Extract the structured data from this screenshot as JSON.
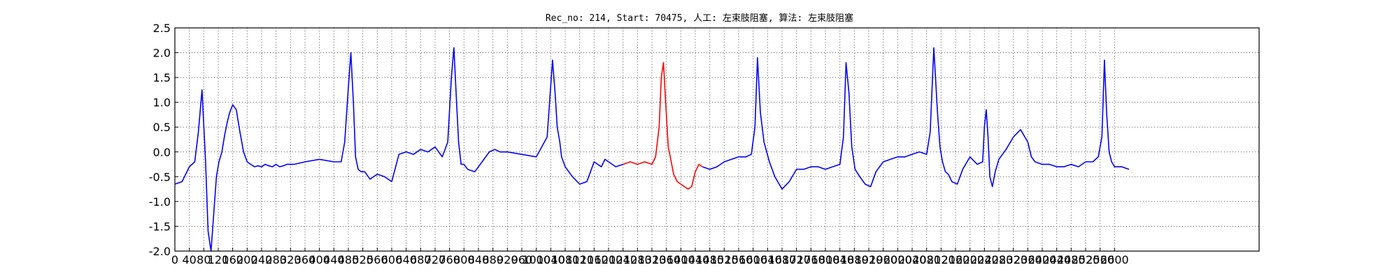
{
  "chart_data": {
    "type": "line",
    "title": "Rec_no: 214, Start: 70475, 人工: 左束肢阻塞, 算法: 左束肢阻塞",
    "xlabel": "",
    "ylabel": "",
    "xlim": [
      0,
      3000
    ],
    "ylim": [
      -2.0,
      2.5
    ],
    "grid": true,
    "x_ticks": [
      0,
      40,
      80,
      120,
      160,
      200,
      240,
      280,
      320,
      360,
      400,
      440,
      480,
      520,
      560,
      600,
      640,
      680,
      720,
      760,
      800,
      840,
      880,
      920,
      960,
      1000,
      1040,
      1080,
      1120,
      1160,
      1200,
      1240,
      1280,
      1320,
      1360,
      1400,
      1440,
      1480,
      1520,
      1560,
      1600,
      1640,
      1680,
      1720,
      1760,
      1800,
      1840,
      1880,
      1920,
      1960,
      2000,
      2040,
      2080,
      2120,
      2160,
      2200,
      2240,
      2280,
      2320,
      2360,
      2400,
      2440,
      2480,
      2520,
      2560,
      2600
    ],
    "y_ticks": [
      "2.5",
      "2.0",
      "1.5",
      "1.0",
      "0.5",
      "0.0",
      "-0.5",
      "-1.0",
      "-1.5",
      "-2.0"
    ],
    "series": [
      {
        "color": "#0000ff",
        "x": [
          0,
          20,
          40,
          55,
          65,
          75,
          85,
          92,
          100,
          108,
          115,
          122,
          130,
          138,
          145,
          152,
          160,
          170,
          180,
          190,
          200,
          210,
          220,
          230,
          240,
          250,
          260,
          270,
          280,
          290,
          300,
          310,
          330,
          360,
          400,
          440,
          460,
          470,
          480,
          487,
          494,
          500,
          507,
          515,
          525,
          540,
          560,
          580,
          600,
          620,
          640,
          660,
          680,
          700,
          720,
          740,
          755,
          765,
          772,
          778,
          785,
          792,
          800,
          810,
          830,
          850,
          870,
          885,
          900,
          920,
          960,
          1000,
          1030,
          1045,
          1052,
          1058,
          1065,
          1070,
          1080,
          1100,
          1120,
          1140,
          1150,
          1160,
          1170,
          1180,
          1190,
          1200,
          1220,
          1240
        ],
        "y": [
          -0.65,
          -0.6,
          -0.3,
          -0.2,
          0.4,
          1.25,
          -0.2,
          -1.6,
          -2.0,
          -1.2,
          -0.5,
          -0.2,
          0.0,
          0.35,
          0.6,
          0.8,
          0.95,
          0.85,
          0.4,
          0.0,
          -0.2,
          -0.25,
          -0.3,
          -0.28,
          -0.3,
          -0.25,
          -0.28,
          -0.3,
          -0.25,
          -0.3,
          -0.28,
          -0.25,
          -0.25,
          -0.2,
          -0.15,
          -0.2,
          -0.2,
          0.2,
          1.3,
          2.0,
          1.0,
          -0.1,
          -0.35,
          -0.4,
          -0.4,
          -0.55,
          -0.45,
          -0.5,
          -0.6,
          -0.05,
          0.0,
          -0.05,
          0.05,
          0.0,
          0.1,
          -0.1,
          0.2,
          1.5,
          2.1,
          1.2,
          0.2,
          -0.25,
          -0.25,
          -0.35,
          -0.4,
          -0.2,
          0.0,
          0.05,
          0.0,
          0.0,
          -0.05,
          -0.1,
          0.3,
          1.85,
          1.2,
          0.5,
          0.2,
          -0.1,
          -0.3,
          -0.5,
          -0.65,
          -0.6,
          -0.4,
          -0.2,
          -0.25,
          -0.3,
          -0.15,
          -0.2,
          -0.3,
          -0.25
        ]
      },
      {
        "color": "#ff0000",
        "x": [
          1240,
          1260,
          1280,
          1300,
          1320,
          1330,
          1340,
          1346,
          1352,
          1358,
          1365,
          1372,
          1380,
          1390,
          1400,
          1410,
          1420,
          1430,
          1440,
          1450,
          1460
        ],
        "y": [
          -0.25,
          -0.2,
          -0.25,
          -0.2,
          -0.25,
          -0.1,
          0.5,
          1.5,
          1.8,
          1.0,
          0.1,
          -0.15,
          -0.45,
          -0.6,
          -0.65,
          -0.7,
          -0.75,
          -0.7,
          -0.4,
          -0.25,
          -0.3
        ]
      },
      {
        "color": "#0000ff",
        "x": [
          1460,
          1480,
          1500,
          1520,
          1540,
          1560,
          1580,
          1595,
          1605,
          1612,
          1620,
          1630,
          1645,
          1660,
          1680,
          1700,
          1720,
          1740,
          1760,
          1780,
          1800,
          1820,
          1840,
          1850,
          1857,
          1865,
          1873,
          1882,
          1895,
          1910,
          1925,
          1940,
          1960,
          1980,
          2000,
          2020,
          2040,
          2060,
          2080,
          2090,
          2100,
          2110,
          2117,
          2124,
          2132,
          2140,
          2150,
          2165,
          2180,
          2200,
          2220,
          2235,
          2240,
          2245,
          2250,
          2255,
          2262,
          2270,
          2280,
          2300,
          2320,
          2340,
          2360,
          2370,
          2380,
          2400,
          2420,
          2440,
          2460,
          2480,
          2500,
          2520,
          2540,
          2555,
          2565,
          2572,
          2578,
          2585,
          2592,
          2600,
          2620,
          2640
        ],
        "y": [
          -0.3,
          -0.35,
          -0.3,
          -0.2,
          -0.15,
          -0.1,
          -0.1,
          -0.05,
          0.5,
          1.9,
          0.8,
          0.2,
          -0.2,
          -0.5,
          -0.75,
          -0.6,
          -0.35,
          -0.35,
          -0.3,
          -0.3,
          -0.35,
          -0.3,
          -0.25,
          0.3,
          1.8,
          1.2,
          0.1,
          -0.35,
          -0.5,
          -0.65,
          -0.7,
          -0.4,
          -0.2,
          -0.15,
          -0.1,
          -0.1,
          -0.05,
          0.0,
          -0.05,
          0.4,
          2.1,
          0.8,
          0.1,
          -0.2,
          -0.4,
          -0.45,
          -0.6,
          -0.65,
          -0.35,
          -0.1,
          -0.25,
          -0.2,
          0.5,
          0.85,
          0.3,
          -0.5,
          -0.7,
          -0.4,
          -0.15,
          0.05,
          0.3,
          0.45,
          0.2,
          -0.1,
          -0.2,
          -0.25,
          -0.25,
          -0.3,
          -0.3,
          -0.25,
          -0.3,
          -0.2,
          -0.2,
          -0.1,
          0.3,
          1.85,
          0.8,
          0.0,
          -0.2,
          -0.3,
          -0.3,
          -0.35
        ]
      }
    ]
  }
}
